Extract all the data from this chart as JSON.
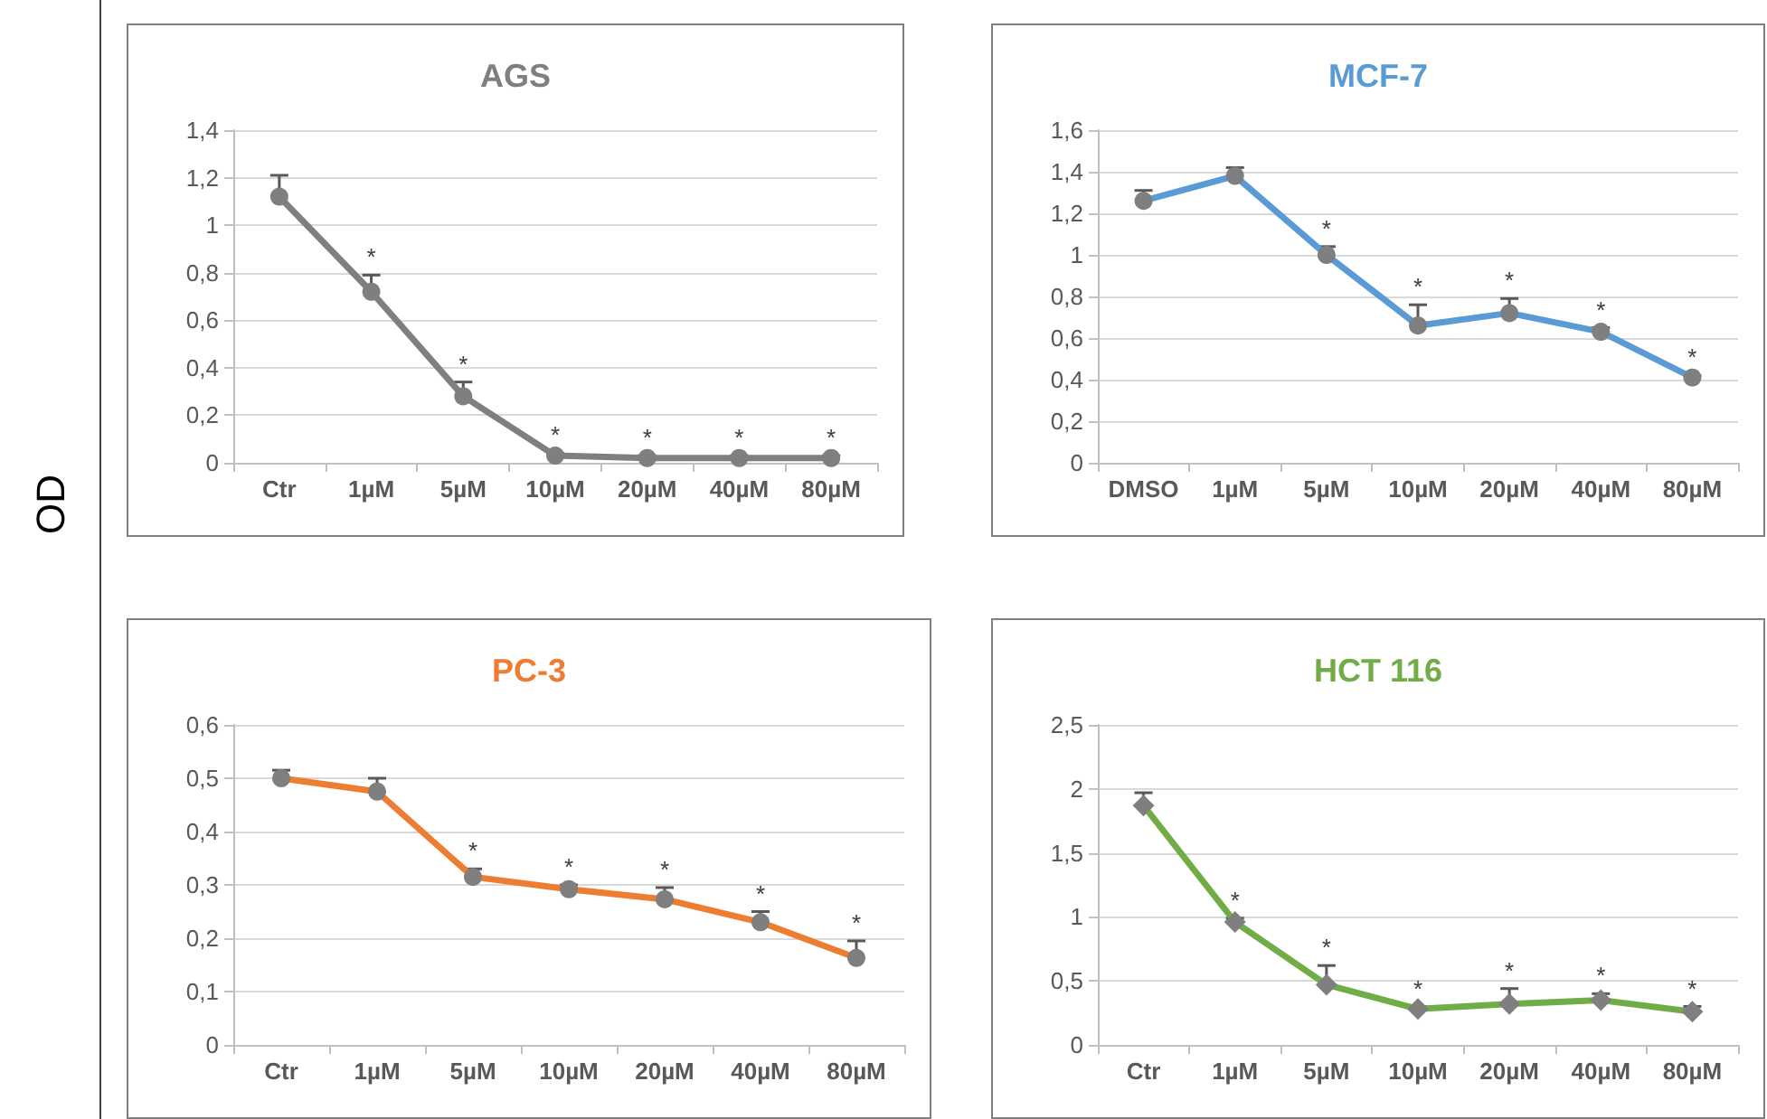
{
  "chart_data": [
    {
      "type": "line",
      "title": "AGS",
      "ylabel": "OD",
      "categories": [
        "Ctr",
        "1µM",
        "5µM",
        "10µM",
        "20µM",
        "40µM",
        "80µM"
      ],
      "marker": "circle",
      "grid": "y",
      "ylim": [
        0,
        1.4
      ],
      "yticks": [
        0,
        {
          "value": 0.2,
          "label": "0,2"
        },
        {
          "value": 0.4,
          "label": "0,4"
        },
        {
          "value": 0.6,
          "label": "0,6"
        },
        {
          "value": 0.8,
          "label": "0,8"
        },
        1,
        {
          "value": 1.2,
          "label": "1,2"
        },
        {
          "value": 1.4,
          "label": "1,4"
        }
      ],
      "series": [
        {
          "color": "#7f7f7f",
          "values": [
            1.12,
            0.72,
            0.28,
            0.03,
            0.02,
            0.02,
            0.02
          ],
          "errors": [
            [
              1.12,
              1.21
            ],
            [
              0.72,
              0.79
            ],
            [
              0.28,
              0.34
            ],
            [
              0.03,
              0.04
            ],
            [
              0.02,
              0.03
            ],
            [
              0.02,
              0.03
            ],
            [
              0.02,
              0.03
            ]
          ]
        }
      ],
      "annotations": [
        {
          "text": "*",
          "x": "1µM",
          "y": 0.72
        },
        {
          "text": "*",
          "x": "5µM",
          "y": 0.28
        },
        {
          "text": "*",
          "x": "10µM",
          "y": 0.03
        },
        {
          "text": "*",
          "x": "20µM",
          "y": 0.02
        },
        {
          "text": "*",
          "x": "40µM",
          "y": 0.02
        },
        {
          "text": "*",
          "x": "80µM",
          "y": 0.02
        }
      ]
    },
    {
      "type": "line",
      "title": "MCF-7",
      "categories": [
        "DMSO",
        "1µM",
        "5µM",
        "10µM",
        "20µM",
        "40µM",
        "80µM"
      ],
      "marker": "circle",
      "grid": "y",
      "ylim": [
        0,
        1.6
      ],
      "yticks": [
        0,
        {
          "value": 0.2,
          "label": "0,2"
        },
        {
          "value": 0.4,
          "label": "0,4"
        },
        {
          "value": 0.6,
          "label": "0,6"
        },
        {
          "value": 0.8,
          "label": "0,8"
        },
        1,
        {
          "value": 1.2,
          "label": "1,2"
        },
        {
          "value": 1.4,
          "label": "1,4"
        },
        {
          "value": 1.6,
          "label": "1,6"
        }
      ],
      "series": [
        {
          "color": "#5b9bd5",
          "values": [
            1.26,
            1.38,
            1.0,
            0.66,
            0.72,
            0.63,
            0.41
          ],
          "errors": [
            [
              1.26,
              1.31
            ],
            [
              1.38,
              1.42
            ],
            [
              1.0,
              1.04
            ],
            [
              0.66,
              0.76
            ],
            [
              0.72,
              0.79
            ],
            [
              0.63,
              0.65
            ],
            [
              0.41,
              0.42
            ]
          ]
        }
      ],
      "annotations": [
        {
          "text": "*",
          "x": "5µM",
          "y": 1.0
        },
        {
          "text": "*",
          "x": "10µM",
          "y": 0.66
        },
        {
          "text": "*",
          "x": "20µM",
          "y": 0.72
        },
        {
          "text": "*",
          "x": "40µM",
          "y": 0.63
        },
        {
          "text": "*",
          "x": "80µM",
          "y": 0.41
        }
      ]
    },
    {
      "type": "line",
      "title": "PC-3",
      "categories": [
        "Ctr",
        "1µM",
        "5µM",
        "10µM",
        "20µM",
        "40µM",
        "80µM"
      ],
      "marker": "circle",
      "grid": "y",
      "ylim": [
        0,
        0.6
      ],
      "yticks": [
        0,
        {
          "value": 0.1,
          "label": "0,1"
        },
        {
          "value": 0.2,
          "label": "0,2"
        },
        {
          "value": 0.3,
          "label": "0,3"
        },
        {
          "value": 0.4,
          "label": "0,4"
        },
        {
          "value": 0.5,
          "label": "0,5"
        },
        {
          "value": 0.6,
          "label": "0,6"
        }
      ],
      "series": [
        {
          "color": "#ed7d31",
          "values": [
            0.5,
            0.475,
            0.315,
            0.292,
            0.273,
            0.23,
            0.163
          ],
          "errors": [
            [
              0.5,
              0.515
            ],
            [
              0.475,
              0.5
            ],
            [
              0.315,
              0.33
            ],
            [
              0.292,
              0.3
            ],
            [
              0.273,
              0.295
            ],
            [
              0.23,
              0.25
            ],
            [
              0.163,
              0.195
            ]
          ]
        }
      ],
      "annotations": [
        {
          "text": "*",
          "x": "5µM",
          "y": 0.315
        },
        {
          "text": "*",
          "x": "10µM",
          "y": 0.292
        },
        {
          "text": "*",
          "x": "20µM",
          "y": 0.273
        },
        {
          "text": "*",
          "x": "40µM",
          "y": 0.23
        },
        {
          "text": "*",
          "x": "80µM",
          "y": 0.163
        }
      ]
    },
    {
      "type": "line",
      "title": "HCT 116",
      "categories": [
        "Ctr",
        "1µM",
        "5µM",
        "10µM",
        "20µM",
        "40µM",
        "80µM"
      ],
      "marker": "diamond",
      "grid": "y",
      "ylim": [
        0,
        2.5
      ],
      "yticks": [
        0,
        {
          "value": 0.5,
          "label": "0,5"
        },
        1,
        {
          "value": 1.5,
          "label": "1,5"
        },
        2,
        {
          "value": 2.5,
          "label": "2,5"
        }
      ],
      "series": [
        {
          "color": "#70ad47",
          "values": [
            1.87,
            0.96,
            0.47,
            0.28,
            0.32,
            0.35,
            0.26
          ],
          "errors": [
            [
              1.87,
              1.97
            ],
            [
              0.96,
              0.99
            ],
            [
              0.47,
              0.62
            ],
            [
              0.28,
              0.3
            ],
            [
              0.32,
              0.44
            ],
            [
              0.35,
              0.4
            ],
            [
              0.26,
              0.3
            ]
          ]
        }
      ],
      "annotations": [
        {
          "text": "*",
          "x": "1µM",
          "y": 0.96
        },
        {
          "text": "*",
          "x": "5µM",
          "y": 0.47
        },
        {
          "text": "*",
          "x": "10µM",
          "y": 0.28
        },
        {
          "text": "*",
          "x": "20µM",
          "y": 0.32
        },
        {
          "text": "*",
          "x": "40µM",
          "y": 0.35
        },
        {
          "text": "*",
          "x": "80µM",
          "y": 0.26
        }
      ]
    }
  ]
}
